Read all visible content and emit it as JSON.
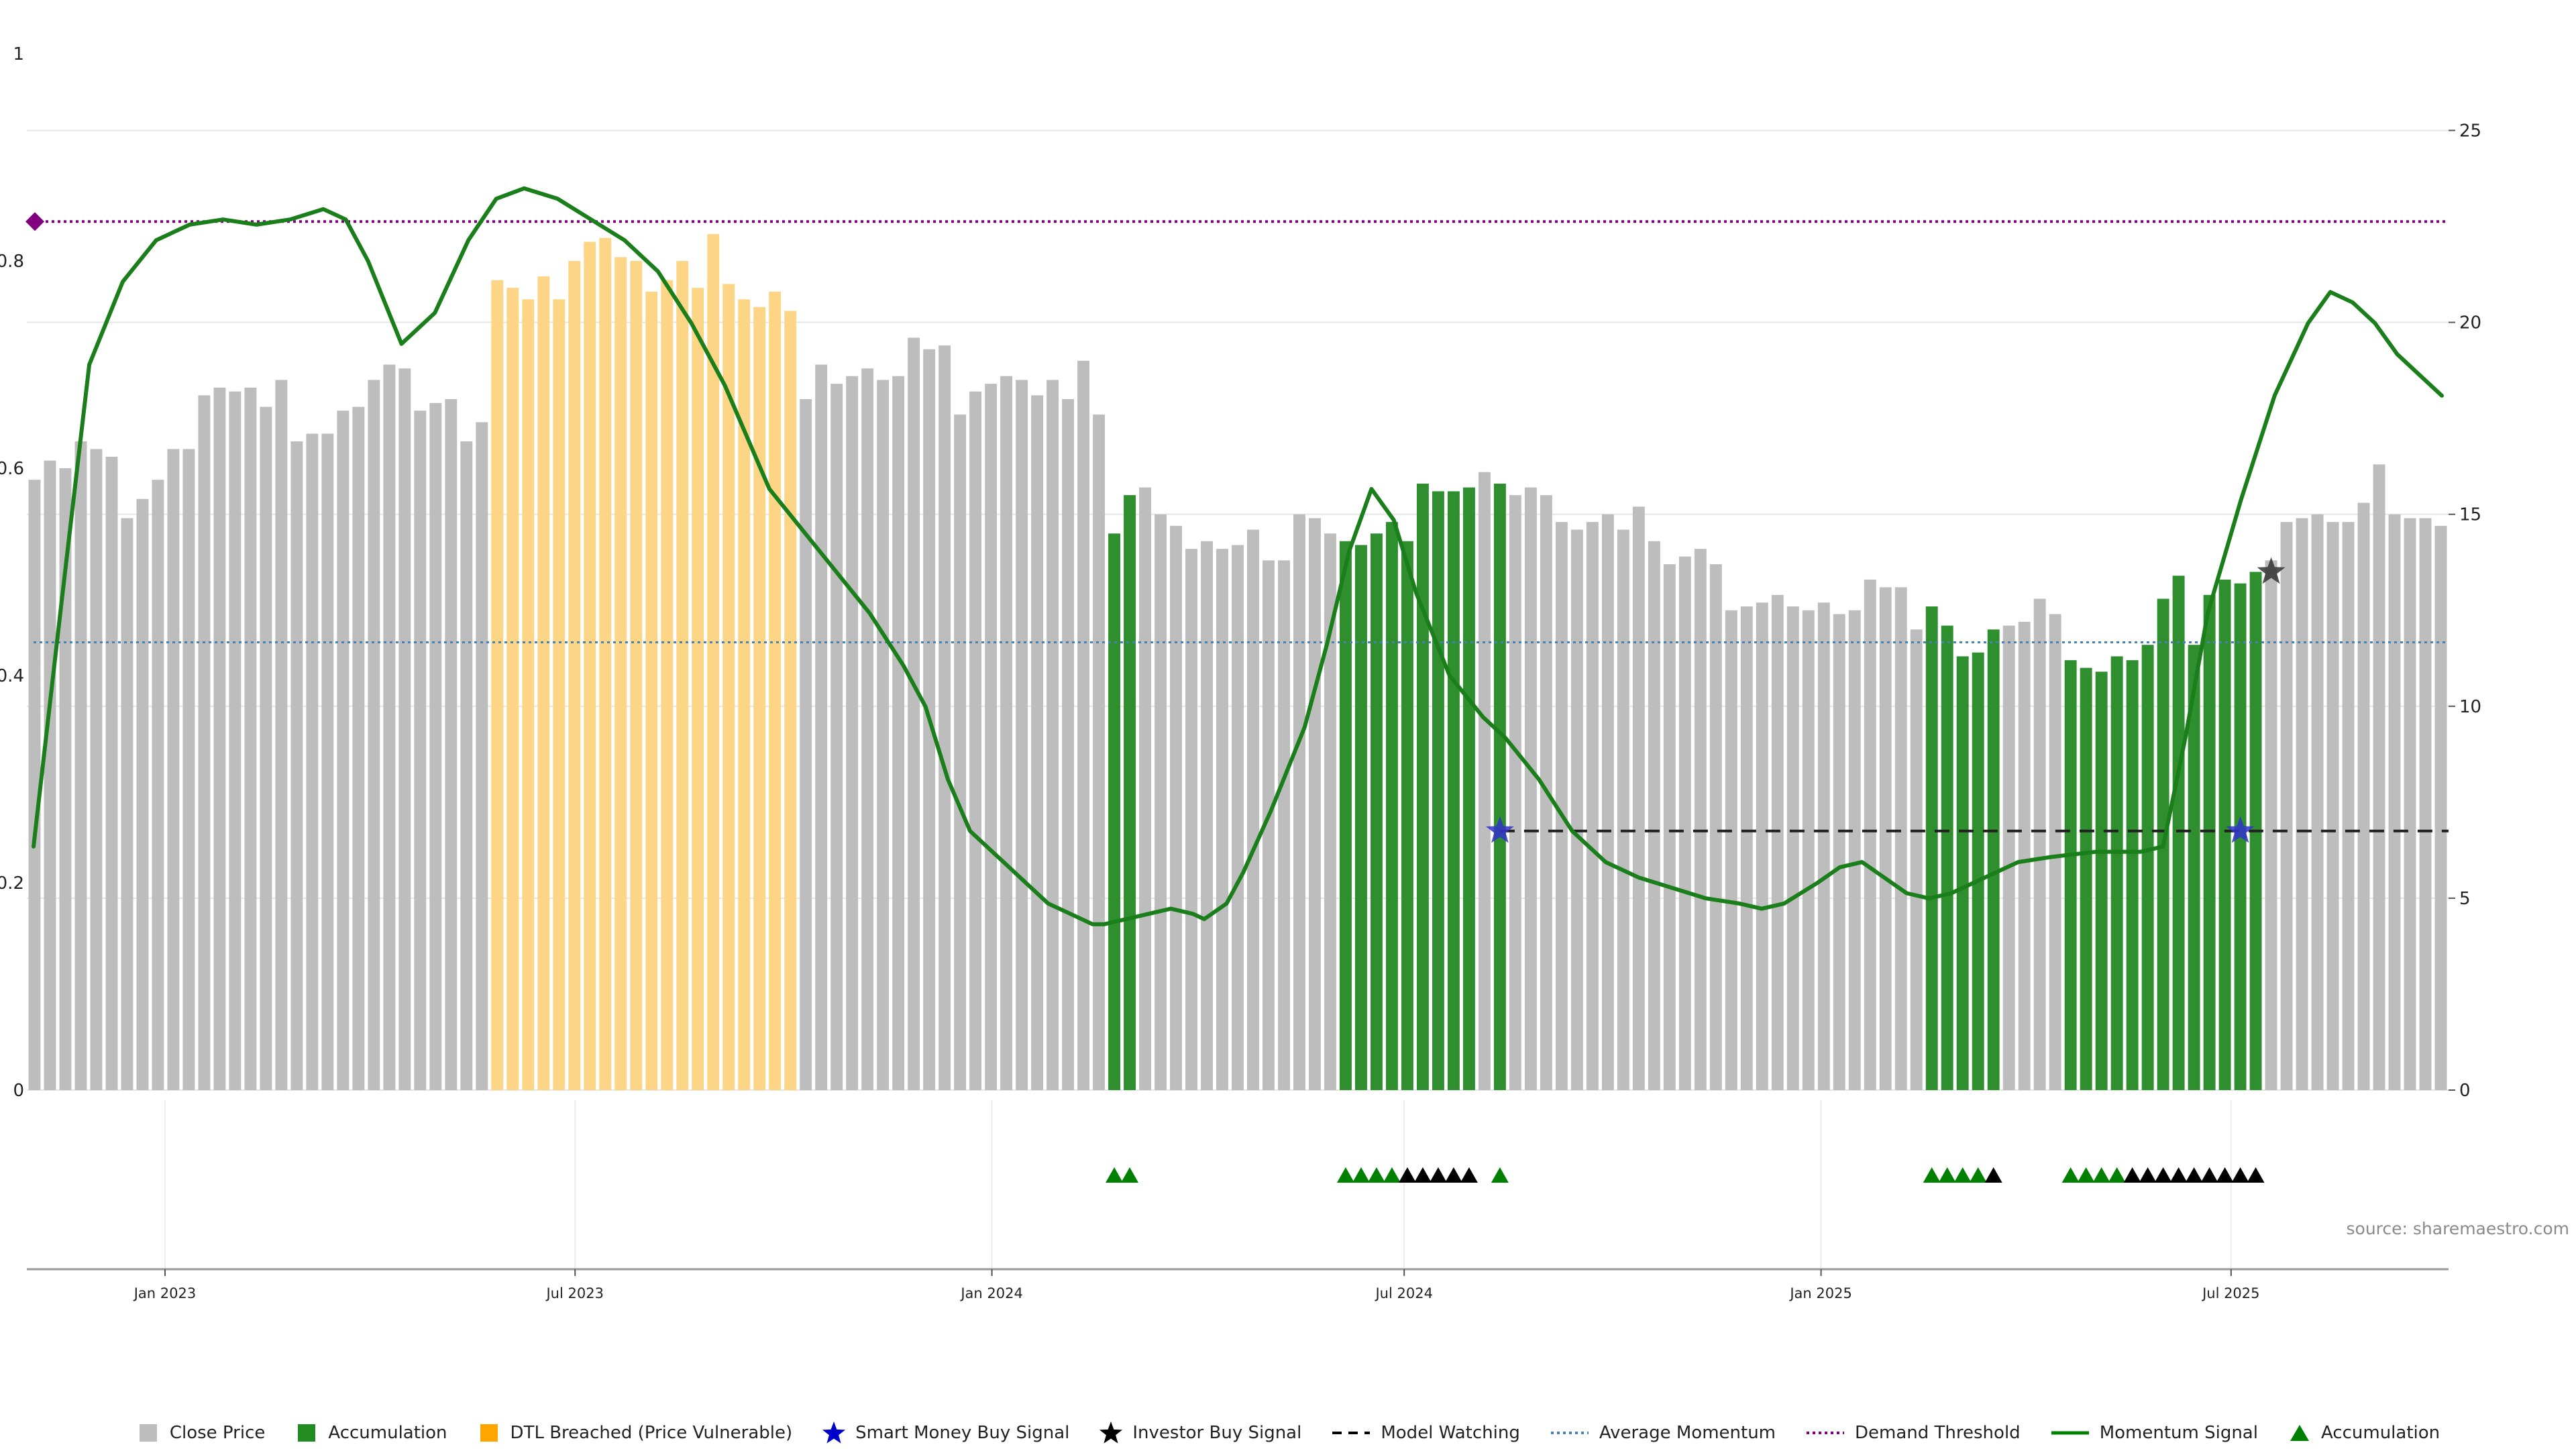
{
  "chart_data": {
    "type": "bar",
    "x_ticks": [
      "Jan 2023",
      "Jul 2023",
      "Jan 2024",
      "Jul 2024",
      "Jan 2025",
      "Jul 2025"
    ],
    "left_axis": {
      "ticks": [
        "0",
        "0.2",
        "0.4",
        "0.6",
        "0.8",
        "1"
      ],
      "ylim": [
        0,
        1
      ]
    },
    "right_axis": {
      "ticks": [
        "0",
        "5",
        "10",
        "15",
        "20",
        "25"
      ],
      "ylim": [
        0,
        27
      ]
    },
    "source": "source: sharemaestro.com",
    "legend_placement": "bottom",
    "legend": [
      {
        "label": "Close Price",
        "marker": "square",
        "color": "#bdbdbd"
      },
      {
        "label": "Accumulation",
        "marker": "square",
        "color": "#228b22"
      },
      {
        "label": "DTL Breached (Price Vulnerable)",
        "marker": "square",
        "color": "#ffa500"
      },
      {
        "label": "Smart Money Buy Signal",
        "marker": "star",
        "color": "#0000cc"
      },
      {
        "label": "Investor Buy Signal",
        "marker": "star",
        "color": "#000000"
      },
      {
        "label": "Model Watching",
        "marker": "dashed-line",
        "color": "#000000"
      },
      {
        "label": "Average Momentum",
        "marker": "dotted-line",
        "color": "#4682b4"
      },
      {
        "label": "Demand Threshold",
        "marker": "dotted-line",
        "color": "#800080"
      },
      {
        "label": "Momentum Signal",
        "marker": "line",
        "color": "#008000"
      },
      {
        "label": "Accumulation",
        "marker": "triangle",
        "color": "#008000"
      }
    ],
    "colors": {
      "close": "#bdbdbd",
      "accum": "#2f8f2f",
      "dtl": "#fdd587",
      "momentum": "#1a7f1a",
      "avg": "#4682b4",
      "demand": "#800080",
      "watch": "#222222",
      "tri_green": "#008000",
      "tri_black": "#000000"
    },
    "price_bars": {
      "dates": [
        "2022-11-01",
        "2025-10-05"
      ],
      "values": [
        15.9,
        16.4,
        16.2,
        16.9,
        16.7,
        16.5,
        14.9,
        15.4,
        15.9,
        16.7,
        16.7,
        18.1,
        18.3,
        18.2,
        18.3,
        17.8,
        18.5,
        16.9,
        17.1,
        17.1,
        17.7,
        17.8,
        18.5,
        18.9,
        18.8,
        17.7,
        17.9,
        18.0,
        16.9,
        17.4,
        21.1,
        20.9,
        20.6,
        21.2,
        20.6,
        21.6,
        22.1,
        22.2,
        21.7,
        21.6,
        20.8,
        21.1,
        21.6,
        20.9,
        22.3,
        21.0,
        20.6,
        20.4,
        20.8,
        20.3,
        18.0,
        18.9,
        18.4,
        18.6,
        18.8,
        18.5,
        18.6,
        19.6,
        19.3,
        19.4,
        17.6,
        18.2,
        18.4,
        18.6,
        18.5,
        18.1,
        18.5,
        18.0,
        19.0,
        17.6,
        14.5,
        15.5,
        15.7,
        15.0,
        14.7,
        14.1,
        14.3,
        14.1,
        14.2,
        14.6,
        13.8,
        13.8,
        15.0,
        14.9,
        14.5,
        14.3,
        14.2,
        14.5,
        14.8,
        14.3,
        15.8,
        15.6,
        15.6,
        15.7,
        16.1,
        15.8,
        15.5,
        15.7,
        15.5,
        14.8,
        14.6,
        14.8,
        15.0,
        14.6,
        15.2,
        14.3,
        13.7,
        13.9,
        14.1,
        13.7,
        12.5,
        12.6,
        12.7,
        12.9,
        12.6,
        12.5,
        12.7,
        12.4,
        12.5,
        13.3,
        13.1,
        13.1,
        12.0,
        12.6,
        12.1,
        11.3,
        11.4,
        12.0,
        12.1,
        12.2,
        12.8,
        12.4,
        11.2,
        11.0,
        10.9,
        11.3,
        11.2,
        11.6,
        12.8,
        13.4,
        11.6,
        12.9,
        13.3,
        13.2,
        13.5,
        13.8,
        14.8,
        14.9,
        15.0,
        14.8,
        14.8,
        15.3,
        16.3,
        15.0,
        14.9,
        14.9,
        14.7
      ],
      "accumulation_ranges": [
        [
          70,
          71
        ],
        [
          85,
          93
        ],
        [
          95,
          95
        ],
        [
          123,
          127
        ],
        [
          132,
          144
        ]
      ],
      "dtl_ranges": [
        [
          30,
          49
        ]
      ]
    },
    "momentum_signal": [
      [
        0,
        23.5
      ],
      [
        5,
        47
      ],
      [
        10,
        70
      ],
      [
        16,
        78
      ],
      [
        22,
        82
      ],
      [
        28,
        83.5
      ],
      [
        34,
        84
      ],
      [
        40,
        83.5
      ],
      [
        46,
        84
      ],
      [
        52,
        85
      ],
      [
        56,
        84
      ],
      [
        60,
        80
      ],
      [
        66,
        72
      ],
      [
        72,
        75
      ],
      [
        78,
        82
      ],
      [
        83,
        86
      ],
      [
        88,
        87
      ],
      [
        94,
        86
      ],
      [
        100,
        84
      ],
      [
        106,
        82
      ],
      [
        112,
        79
      ],
      [
        118,
        74
      ],
      [
        124,
        68
      ],
      [
        132,
        58
      ],
      [
        138,
        54
      ],
      [
        144,
        50
      ],
      [
        150,
        46
      ],
      [
        156,
        41
      ],
      [
        160,
        37
      ],
      [
        164,
        30
      ],
      [
        168,
        25
      ],
      [
        174,
        22
      ],
      [
        178,
        20
      ],
      [
        182,
        18
      ],
      [
        186,
        17
      ],
      [
        190,
        16
      ],
      [
        192,
        16
      ],
      [
        196,
        16.5
      ],
      [
        200,
        17
      ],
      [
        204,
        17.5
      ],
      [
        208,
        17
      ],
      [
        210,
        16.5
      ],
      [
        214,
        18
      ],
      [
        217,
        21
      ],
      [
        222,
        27
      ],
      [
        228,
        35
      ],
      [
        232,
        43
      ],
      [
        236,
        52
      ],
      [
        240,
        58
      ],
      [
        244,
        55
      ],
      [
        248,
        48
      ],
      [
        254,
        40
      ],
      [
        260,
        36
      ],
      [
        264,
        34
      ],
      [
        270,
        30
      ],
      [
        276,
        25
      ],
      [
        282,
        22
      ],
      [
        288,
        20.5
      ],
      [
        294,
        19.5
      ],
      [
        300,
        18.5
      ],
      [
        306,
        18
      ],
      [
        310,
        17.5
      ],
      [
        314,
        18
      ],
      [
        320,
        20
      ],
      [
        324,
        21.5
      ],
      [
        328,
        22
      ],
      [
        332,
        20.5
      ],
      [
        336,
        19
      ],
      [
        340,
        18.5
      ],
      [
        344,
        19
      ],
      [
        348,
        20
      ],
      [
        352,
        21
      ],
      [
        356,
        22
      ],
      [
        362,
        22.5
      ],
      [
        370,
        23
      ],
      [
        378,
        23
      ],
      [
        382,
        23.5
      ],
      [
        386,
        34
      ],
      [
        390,
        46
      ],
      [
        396,
        57
      ],
      [
        402,
        67
      ],
      [
        408,
        74
      ],
      [
        412,
        77
      ],
      [
        416,
        76
      ],
      [
        420,
        74
      ],
      [
        424,
        71
      ],
      [
        428,
        69
      ],
      [
        432,
        67
      ]
    ],
    "momentum_signal_scale": {
      "ymax_units": 100
    },
    "average_momentum": 0.432,
    "demand_threshold": 0.838,
    "model_watching": {
      "level": 0.25,
      "start_bar": 95
    },
    "signal_stars": [
      {
        "type": "smart_money",
        "bar": 95,
        "y": 0.25
      },
      {
        "type": "smart_money",
        "bar": 143,
        "y": 0.25
      },
      {
        "type": "investor",
        "bar": 145,
        "y": 0.5
      }
    ],
    "triangle_markers": {
      "green_bars": [
        70,
        71,
        85,
        86,
        87,
        88,
        95,
        123,
        124,
        125,
        126,
        132,
        133,
        134,
        135
      ],
      "black_bars": [
        89,
        90,
        91,
        92,
        93,
        127,
        136,
        137,
        138,
        139,
        140,
        141,
        142,
        143,
        144
      ]
    }
  }
}
